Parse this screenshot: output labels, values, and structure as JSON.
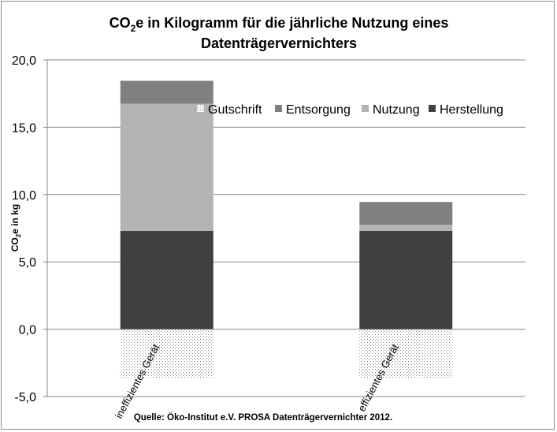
{
  "chart_data": {
    "type": "bar",
    "stacked": true,
    "title_line1_prefix": "CO",
    "title_line1_sub": "2",
    "title_line1_rest": "e in Kilogramm für die jährliche Nutzung eines",
    "title_line2": "Datenträgervernichters",
    "ylabel_prefix": "CO",
    "ylabel_sub": "2",
    "ylabel_rest": "e in kg",
    "ylim": [
      -5,
      20
    ],
    "yticks": [
      -5,
      0,
      5,
      10,
      15,
      20
    ],
    "ytick_labels": [
      "-5,0",
      "0,0",
      "5,0",
      "10,0",
      "15,0",
      "20,0"
    ],
    "grid": "horizontal",
    "legend_position": "top-right",
    "categories": [
      "ineffizientes Gerät",
      "effizientes Gerät"
    ],
    "series": [
      {
        "name": "Herstellung",
        "values": [
          7.3,
          7.3
        ],
        "color": "#404040",
        "pattern": "solid"
      },
      {
        "name": "Nutzung",
        "values": [
          9.45,
          0.45
        ],
        "color": "#b3b3b3",
        "pattern": "solid"
      },
      {
        "name": "Entsorgung",
        "values": [
          1.7,
          1.7
        ],
        "color": "#808080",
        "pattern": "solid"
      },
      {
        "name": "Gutschrift",
        "values": [
          -3.6,
          -3.6
        ],
        "color": "#7f7f7f",
        "pattern": "dotted"
      }
    ],
    "legend_order": [
      "Gutschrift",
      "Entsorgung",
      "Nutzung",
      "Herstellung"
    ]
  },
  "source_note": "Quelle: Öko-Institut e.V. PROSA Datenträgervernichter 2012."
}
